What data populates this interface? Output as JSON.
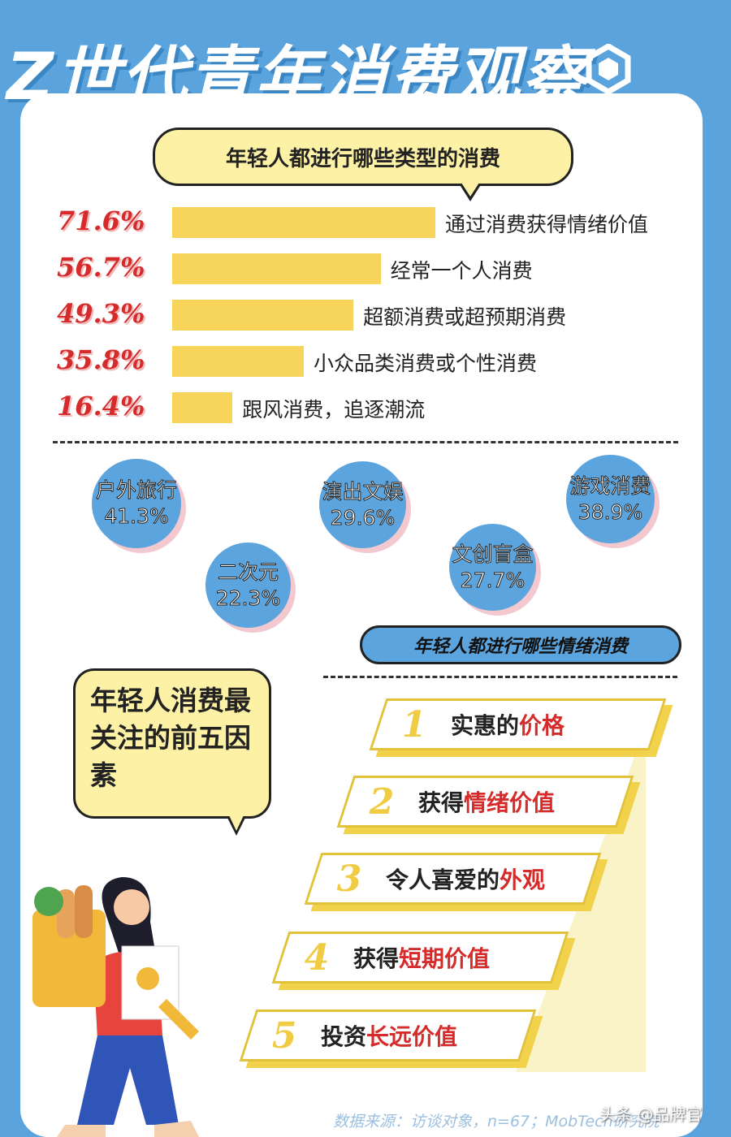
{
  "title": "Z世代青年消费观察",
  "section1": {
    "heading": "年轻人都进行哪些类型的消费"
  },
  "chart_data": [
    {
      "type": "bar",
      "orientation": "horizontal",
      "title": "年轻人都进行哪些类型的消费",
      "categories": [
        "通过消费获得情绪价值",
        "经常一个人消费",
        "超额消费或超预期消费",
        "小众品类消费或个性消费",
        "跟风消费，追逐潮流"
      ],
      "values": [
        71.6,
        56.7,
        49.3,
        35.8,
        16.4
      ],
      "labels": [
        "71.6%",
        "56.7%",
        "49.3%",
        "35.8%",
        "16.4%"
      ],
      "unit": "%"
    },
    {
      "type": "bubble",
      "title": "年轻人都进行哪些情绪消费",
      "categories": [
        "户外旅行",
        "二次元",
        "演出文娱",
        "文创盲盒",
        "游戏消费"
      ],
      "values": [
        41.3,
        22.3,
        29.6,
        27.7,
        38.9
      ],
      "labels": [
        "41.3%",
        "22.3%",
        "29.6%",
        "27.7%",
        "38.9%"
      ],
      "unit": "%"
    }
  ],
  "section2": {
    "heading": "年轻人都进行哪些情绪消费"
  },
  "section3": {
    "heading": "年轻人消费最关注的前五因素",
    "factors": [
      {
        "num": "1",
        "pre": "实惠的",
        "hl": "价格"
      },
      {
        "num": "2",
        "pre": "获得",
        "hl": "情绪价值"
      },
      {
        "num": "3",
        "pre": "令人喜爱的",
        "hl": "外观"
      },
      {
        "num": "4",
        "pre": "获得",
        "hl": "短期价值"
      },
      {
        "num": "5",
        "pre": "投资",
        "hl": "长远价值"
      }
    ]
  },
  "source": "数据来源：访谈对象，n=67；MobTech研究院",
  "watermark": "头条 @品牌官",
  "colors": {
    "background": "#5aa3dc",
    "bar": "#f6d55a",
    "percent": "#d52b2b",
    "circle": "#5ba4de",
    "bubble": "#fdf1a6",
    "highlight": "#d52b2b"
  }
}
